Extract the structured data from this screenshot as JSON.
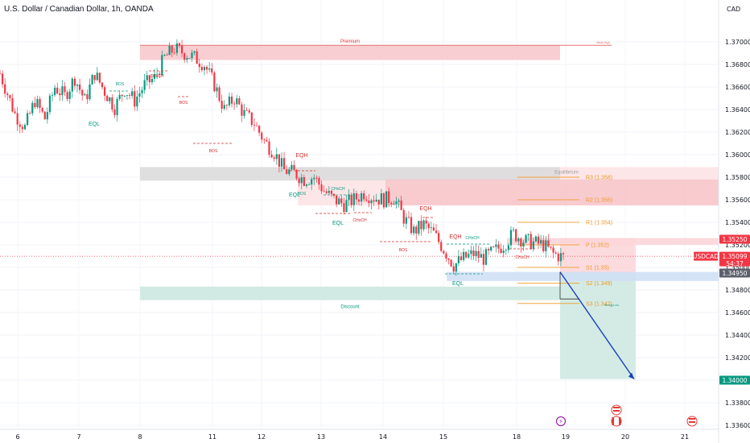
{
  "header": {
    "title": "U.S. Dollar / Canadian Dollar, 1h, OANDA",
    "currency": "CAD"
  },
  "colors": {
    "up": "#089981",
    "down": "#f23645",
    "zone_red": "#f7c6ca",
    "zone_green": "#cfe9e2",
    "zone_gray": "#dcdcdc",
    "zone_blue": "#cfe0f5",
    "pivot": "#ef9a24",
    "bos_red": "#d32f2f",
    "eq_green": "#089981",
    "arrow": "#1b3fbe"
  },
  "chart_data": {
    "type": "candlestick",
    "symbol": "USDCAD",
    "timeframe": "1h",
    "x_tick_labels": [
      "6",
      "7",
      "8",
      "11",
      "12",
      "13",
      "14",
      "15",
      "18",
      "19",
      "20",
      "21"
    ],
    "y_tick_labels": [
      "1.37000",
      "1.36800",
      "1.36600",
      "1.36400",
      "1.36200",
      "1.36000",
      "1.35800",
      "1.35600",
      "1.35400",
      "1.35200",
      "1.35000",
      "1.34800",
      "1.34600",
      "1.34400",
      "1.34200",
      "1.34000",
      "1.33800",
      "1.33600"
    ],
    "ylim": [
      1.3354,
      1.3723
    ],
    "price_path": [
      {
        "x": 0,
        "y": 1.3672
      },
      {
        "x": 6,
        "y": 1.3636
      },
      {
        "x": 10,
        "y": 1.3624
      },
      {
        "x": 14,
        "y": 1.3648
      },
      {
        "x": 18,
        "y": 1.3632
      },
      {
        "x": 22,
        "y": 1.366
      },
      {
        "x": 26,
        "y": 1.3652
      },
      {
        "x": 30,
        "y": 1.3668
      },
      {
        "x": 34,
        "y": 1.3648
      },
      {
        "x": 38,
        "y": 1.3672
      },
      {
        "x": 42,
        "y": 1.3656
      },
      {
        "x": 46,
        "y": 1.3642
      },
      {
        "x": 50,
        "y": 1.3658
      },
      {
        "x": 54,
        "y": 1.3648
      },
      {
        "x": 58,
        "y": 1.3662
      },
      {
        "x": 62,
        "y": 1.3668
      },
      {
        "x": 66,
        "y": 1.3686
      },
      {
        "x": 70,
        "y": 1.3694
      },
      {
        "x": 74,
        "y": 1.369
      },
      {
        "x": 78,
        "y": 1.3686
      },
      {
        "x": 82,
        "y": 1.368
      },
      {
        "x": 86,
        "y": 1.3662
      },
      {
        "x": 90,
        "y": 1.364
      },
      {
        "x": 94,
        "y": 1.365
      },
      {
        "x": 98,
        "y": 1.3636
      },
      {
        "x": 102,
        "y": 1.3628
      },
      {
        "x": 106,
        "y": 1.3612
      },
      {
        "x": 110,
        "y": 1.3602
      },
      {
        "x": 114,
        "y": 1.3586
      },
      {
        "x": 118,
        "y": 1.3584
      },
      {
        "x": 122,
        "y": 1.3578
      },
      {
        "x": 126,
        "y": 1.358
      },
      {
        "x": 130,
        "y": 1.3568
      },
      {
        "x": 134,
        "y": 1.356
      },
      {
        "x": 138,
        "y": 1.3556
      },
      {
        "x": 142,
        "y": 1.356
      },
      {
        "x": 146,
        "y": 1.3566
      },
      {
        "x": 150,
        "y": 1.3562
      },
      {
        "x": 154,
        "y": 1.356
      },
      {
        "x": 158,
        "y": 1.3562
      },
      {
        "x": 162,
        "y": 1.3544
      },
      {
        "x": 166,
        "y": 1.3532
      },
      {
        "x": 170,
        "y": 1.3538
      },
      {
        "x": 174,
        "y": 1.353
      },
      {
        "x": 178,
        "y": 1.3516
      },
      {
        "x": 182,
        "y": 1.3502
      },
      {
        "x": 186,
        "y": 1.3508
      },
      {
        "x": 190,
        "y": 1.3512
      },
      {
        "x": 194,
        "y": 1.3508
      },
      {
        "x": 198,
        "y": 1.3514
      },
      {
        "x": 202,
        "y": 1.352
      },
      {
        "x": 206,
        "y": 1.353
      },
      {
        "x": 210,
        "y": 1.3524
      },
      {
        "x": 214,
        "y": 1.3522
      },
      {
        "x": 218,
        "y": 1.352
      },
      {
        "x": 222,
        "y": 1.3512
      },
      {
        "x": 226,
        "y": 1.3509
      }
    ],
    "last_price": 1.35099,
    "countdown": "54:37",
    "symbol_tag": "USDCAD",
    "price_tags": [
      {
        "value": "1.35250",
        "kind": "red"
      },
      {
        "value": "1.35099",
        "kind": "red-main"
      },
      {
        "value": "1.34950",
        "kind": "gray"
      },
      {
        "value": "1.34000",
        "kind": "green"
      }
    ],
    "zones": [
      {
        "label": "Premium",
        "from": 1.3684,
        "to": 1.3697,
        "kind": "premium"
      },
      {
        "label": "Equilibrium",
        "from": 1.3577,
        "to": 1.3589,
        "kind": "equilibrium"
      },
      {
        "label": "Discount",
        "from": 1.3471,
        "to": 1.3483,
        "kind": "discount"
      },
      {
        "label": "",
        "from": 1.3555,
        "to": 1.3578,
        "kind": "supply"
      },
      {
        "label": "",
        "from": 1.3495,
        "to": 1.3526,
        "kind": "stop"
      },
      {
        "label": "",
        "from": 1.3401,
        "to": 1.3495,
        "kind": "target"
      },
      {
        "label": "",
        "from": 1.3488,
        "to": 1.3496,
        "kind": "entry"
      }
    ],
    "pivots": [
      {
        "label": "R3 (1.358)",
        "y": 1.358
      },
      {
        "label": "R2 (1.356)",
        "y": 1.356
      },
      {
        "label": "R1 (1.354)",
        "y": 1.354
      },
      {
        "label": "P (1.352)",
        "y": 1.352
      },
      {
        "label": "S1 (1.35)",
        "y": 1.35
      },
      {
        "label": "S2 (1.349)",
        "y": 1.3486
      },
      {
        "label": "S3 (1.347)",
        "y": 1.3468
      }
    ],
    "smc_labels": [
      {
        "text": "BOS",
        "color": "eq"
      },
      {
        "text": "EQL",
        "color": "eq"
      },
      {
        "text": "CHoCH",
        "color": "bos"
      },
      {
        "text": "BOS",
        "color": "bos"
      },
      {
        "text": "BOS",
        "color": "bos"
      },
      {
        "text": "EQH",
        "color": "bos"
      },
      {
        "text": "CHoCH",
        "color": "eq"
      },
      {
        "text": "EQL",
        "color": "eq"
      },
      {
        "text": "BOS",
        "color": "eq"
      },
      {
        "text": "EQL",
        "color": "eq"
      },
      {
        "text": "CHoCH",
        "color": "bos"
      },
      {
        "text": "EQH",
        "color": "bos"
      },
      {
        "text": "BOS",
        "color": "bos"
      },
      {
        "text": "EQH",
        "color": "bos"
      },
      {
        "text": "CHoCH",
        "color": "eq"
      },
      {
        "text": "CHoCH",
        "color": "bos"
      },
      {
        "text": "EQL",
        "color": "eq"
      }
    ],
    "tiny_labels": [
      "Weak High",
      "Strong Low"
    ],
    "projection": {
      "from": 1.3496,
      "to": 1.3401
    }
  }
}
